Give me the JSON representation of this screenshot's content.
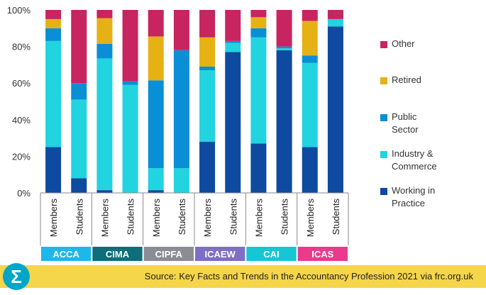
{
  "chart_data": {
    "type": "bar",
    "stacked": true,
    "groups": [
      {
        "name": "ACCA",
        "color": "#1eb7ea"
      },
      {
        "name": "CIMA",
        "color": "#0e6e7a"
      },
      {
        "name": "CIPFA",
        "color": "#8a8d93"
      },
      {
        "name": "ICAEW",
        "color": "#7e6fc4"
      },
      {
        "name": "CAI",
        "color": "#14c7d2"
      },
      {
        "name": "ICAS",
        "color": "#ea3a8c"
      }
    ],
    "categories": [
      "Members",
      "Students",
      "Members",
      "Students",
      "Members",
      "Students",
      "Members",
      "Students",
      "Members",
      "Students",
      "Members",
      "Students"
    ],
    "series": [
      {
        "name": "Working in\nPractice",
        "color": "#0d4aa0",
        "values": [
          25,
          8,
          1.5,
          0,
          1.5,
          0,
          28,
          77,
          27,
          78,
          25,
          91
        ]
      },
      {
        "name": "Industry &\nCommerce",
        "color": "#22d3e0",
        "values": [
          58,
          43,
          72,
          59,
          12,
          13.5,
          39,
          5,
          58,
          1,
          46,
          4
        ]
      },
      {
        "name": "Public\nSector",
        "color": "#0a8fd6",
        "values": [
          7,
          9,
          8,
          2,
          48,
          64.5,
          2,
          1,
          5,
          1,
          4,
          0
        ]
      },
      {
        "name": "Retired",
        "color": "#e6b113",
        "values": [
          5,
          0,
          14,
          0,
          24,
          0,
          16,
          0,
          6,
          0,
          19,
          0
        ]
      },
      {
        "name": "Other",
        "color": "#c8245f",
        "values": [
          5,
          40,
          4.5,
          39,
          14.5,
          22,
          15,
          17,
          4,
          20,
          6,
          5
        ]
      }
    ],
    "ylim": [
      0,
      100
    ],
    "yticks": [
      "0%",
      "20%",
      "40%",
      "60%",
      "80%",
      "100%"
    ],
    "legend_position": "right",
    "grid": false
  },
  "footer": {
    "source": "Source: Key Facts and Trends in the Accountancy Profession 2021 via frc.org.uk",
    "logo_icon": "sigma-icon",
    "logo_glyph": "Σ"
  }
}
